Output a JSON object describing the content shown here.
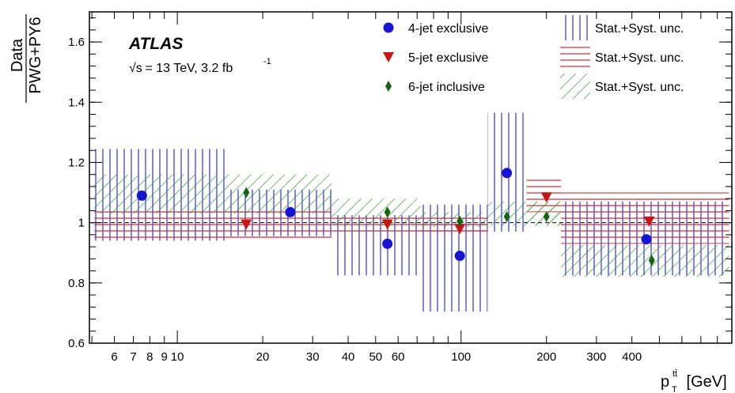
{
  "chart_data": {
    "type": "scatter",
    "xlabel_main": "p",
    "xlabel_sup": "tt̄",
    "xlabel_sub": "T",
    "xlabel_unit": " [GeV]",
    "ylabel_num": "Data",
    "ylabel_den": "PWG+PY6",
    "atlas_label": "ATLAS",
    "lumi_sqrt": "√s",
    "lumi_text": " = 13 TeV, 3.2 fb",
    "lumi_sup": "-1",
    "x_scale": "log",
    "xlim": [
      4.9,
      900
    ],
    "ylim": [
      0.6,
      1.7
    ],
    "y_ticks": [
      0.6,
      0.8,
      1,
      1.2,
      1.4,
      1.6
    ],
    "y_tick_labels": [
      "0.6",
      "0.8",
      "1",
      "1.2",
      "1.4",
      "1.6"
    ],
    "x_ticks": [
      6,
      7,
      8,
      9,
      10,
      20,
      30,
      40,
      50,
      60,
      100,
      200,
      300,
      400
    ],
    "x_tick_labels": [
      "6",
      "7",
      "8",
      "9",
      "10",
      "20",
      "30",
      "40",
      "50",
      "60",
      "100",
      "200",
      "300",
      "400"
    ],
    "reference_line": 1.0,
    "legend": [
      {
        "label": "4-jet exclusive",
        "marker": "circle",
        "color": "#1414d2"
      },
      {
        "label": "5-jet exclusive",
        "marker": "triangle-down",
        "color": "#c81414"
      },
      {
        "label": "6-jet inclusive",
        "marker": "diamond",
        "color": "#146414"
      },
      {
        "label": "Stat.+Syst. unc.",
        "band": "vertical",
        "color": "#3232c8"
      },
      {
        "label": "Stat.+Syst. unc.",
        "band": "horizontal",
        "color": "#d22828"
      },
      {
        "label": "Stat.+Syst. unc.",
        "band": "diagonal",
        "color": "#32a032"
      }
    ],
    "series": [
      {
        "name": "4-jet exclusive",
        "marker": "circle",
        "color": "#1414d2",
        "band_style": "vertical",
        "band_color": "#3232c8",
        "points": [
          {
            "x": 7.5,
            "y": 1.09,
            "x_lo": 5.1,
            "x_hi": 15,
            "y_lo": 0.94,
            "y_hi": 1.245
          },
          {
            "x": 25,
            "y": 1.035,
            "x_lo": 15,
            "x_hi": 35,
            "y_lo": 0.955,
            "y_hi": 1.11
          },
          {
            "x": 55,
            "y": 0.93,
            "x_lo": 35,
            "x_hi": 72,
            "y_lo": 0.825,
            "y_hi": 1.025
          },
          {
            "x": 99,
            "y": 0.89,
            "x_lo": 72,
            "x_hi": 124,
            "y_lo": 0.705,
            "y_hi": 1.06
          },
          {
            "x": 145,
            "y": 1.165,
            "x_lo": 124,
            "x_hi": 170,
            "y_lo": 0.97,
            "y_hi": 1.365
          },
          {
            "x": 450,
            "y": 0.945,
            "x_lo": 225,
            "x_hi": 880,
            "y_lo": 0.825,
            "y_hi": 1.07
          }
        ]
      },
      {
        "name": "5-jet exclusive",
        "marker": "triangle-down",
        "color": "#c81414",
        "band_style": "horizontal",
        "band_color": "#d22828",
        "points": [
          {
            "x": 17.5,
            "y": 0.995,
            "x_lo": 5.1,
            "x_hi": 35,
            "y_lo": 0.945,
            "y_hi": 1.045
          },
          {
            "x": 55,
            "y": 0.995,
            "x_lo": 35,
            "x_hi": 124,
            "y_lo": 0.97,
            "y_hi": 1.025
          },
          {
            "x": 99,
            "y": 0.98,
            "x_lo": 72,
            "x_hi": 124,
            "y_lo": 0.965,
            "y_hi": 1.0
          },
          {
            "x": 200,
            "y": 1.085,
            "x_lo": 170,
            "x_hi": 225,
            "y_lo": 1.035,
            "y_hi": 1.145
          },
          {
            "x": 460,
            "y": 1.005,
            "x_lo": 225,
            "x_hi": 880,
            "y_lo": 0.93,
            "y_hi": 1.1
          }
        ]
      },
      {
        "name": "6-jet inclusive",
        "marker": "diamond",
        "color": "#146414",
        "band_style": "diagonal",
        "band_color": "#32a032",
        "points": [
          {
            "x": 17.5,
            "y": 1.1,
            "x_lo": 5.1,
            "x_hi": 35,
            "y_lo": 1.03,
            "y_hi": 1.16
          },
          {
            "x": 55,
            "y": 1.035,
            "x_lo": 35,
            "x_hi": 72,
            "y_lo": 0.99,
            "y_hi": 1.08
          },
          {
            "x": 99,
            "y": 1.005,
            "x_lo": 72,
            "x_hi": 124,
            "y_lo": 0.985,
            "y_hi": 1.035
          },
          {
            "x": 145,
            "y": 1.02,
            "x_lo": 124,
            "x_hi": 225,
            "y_lo": 0.99,
            "y_hi": 1.07
          },
          {
            "x": 200,
            "y": 1.02,
            "x_lo": 170,
            "x_hi": 225,
            "y_lo": 0.99,
            "y_hi": 1.07
          },
          {
            "x": 470,
            "y": 0.875,
            "x_lo": 225,
            "x_hi": 880,
            "y_lo": 0.82,
            "y_hi": 0.925
          }
        ]
      }
    ]
  }
}
